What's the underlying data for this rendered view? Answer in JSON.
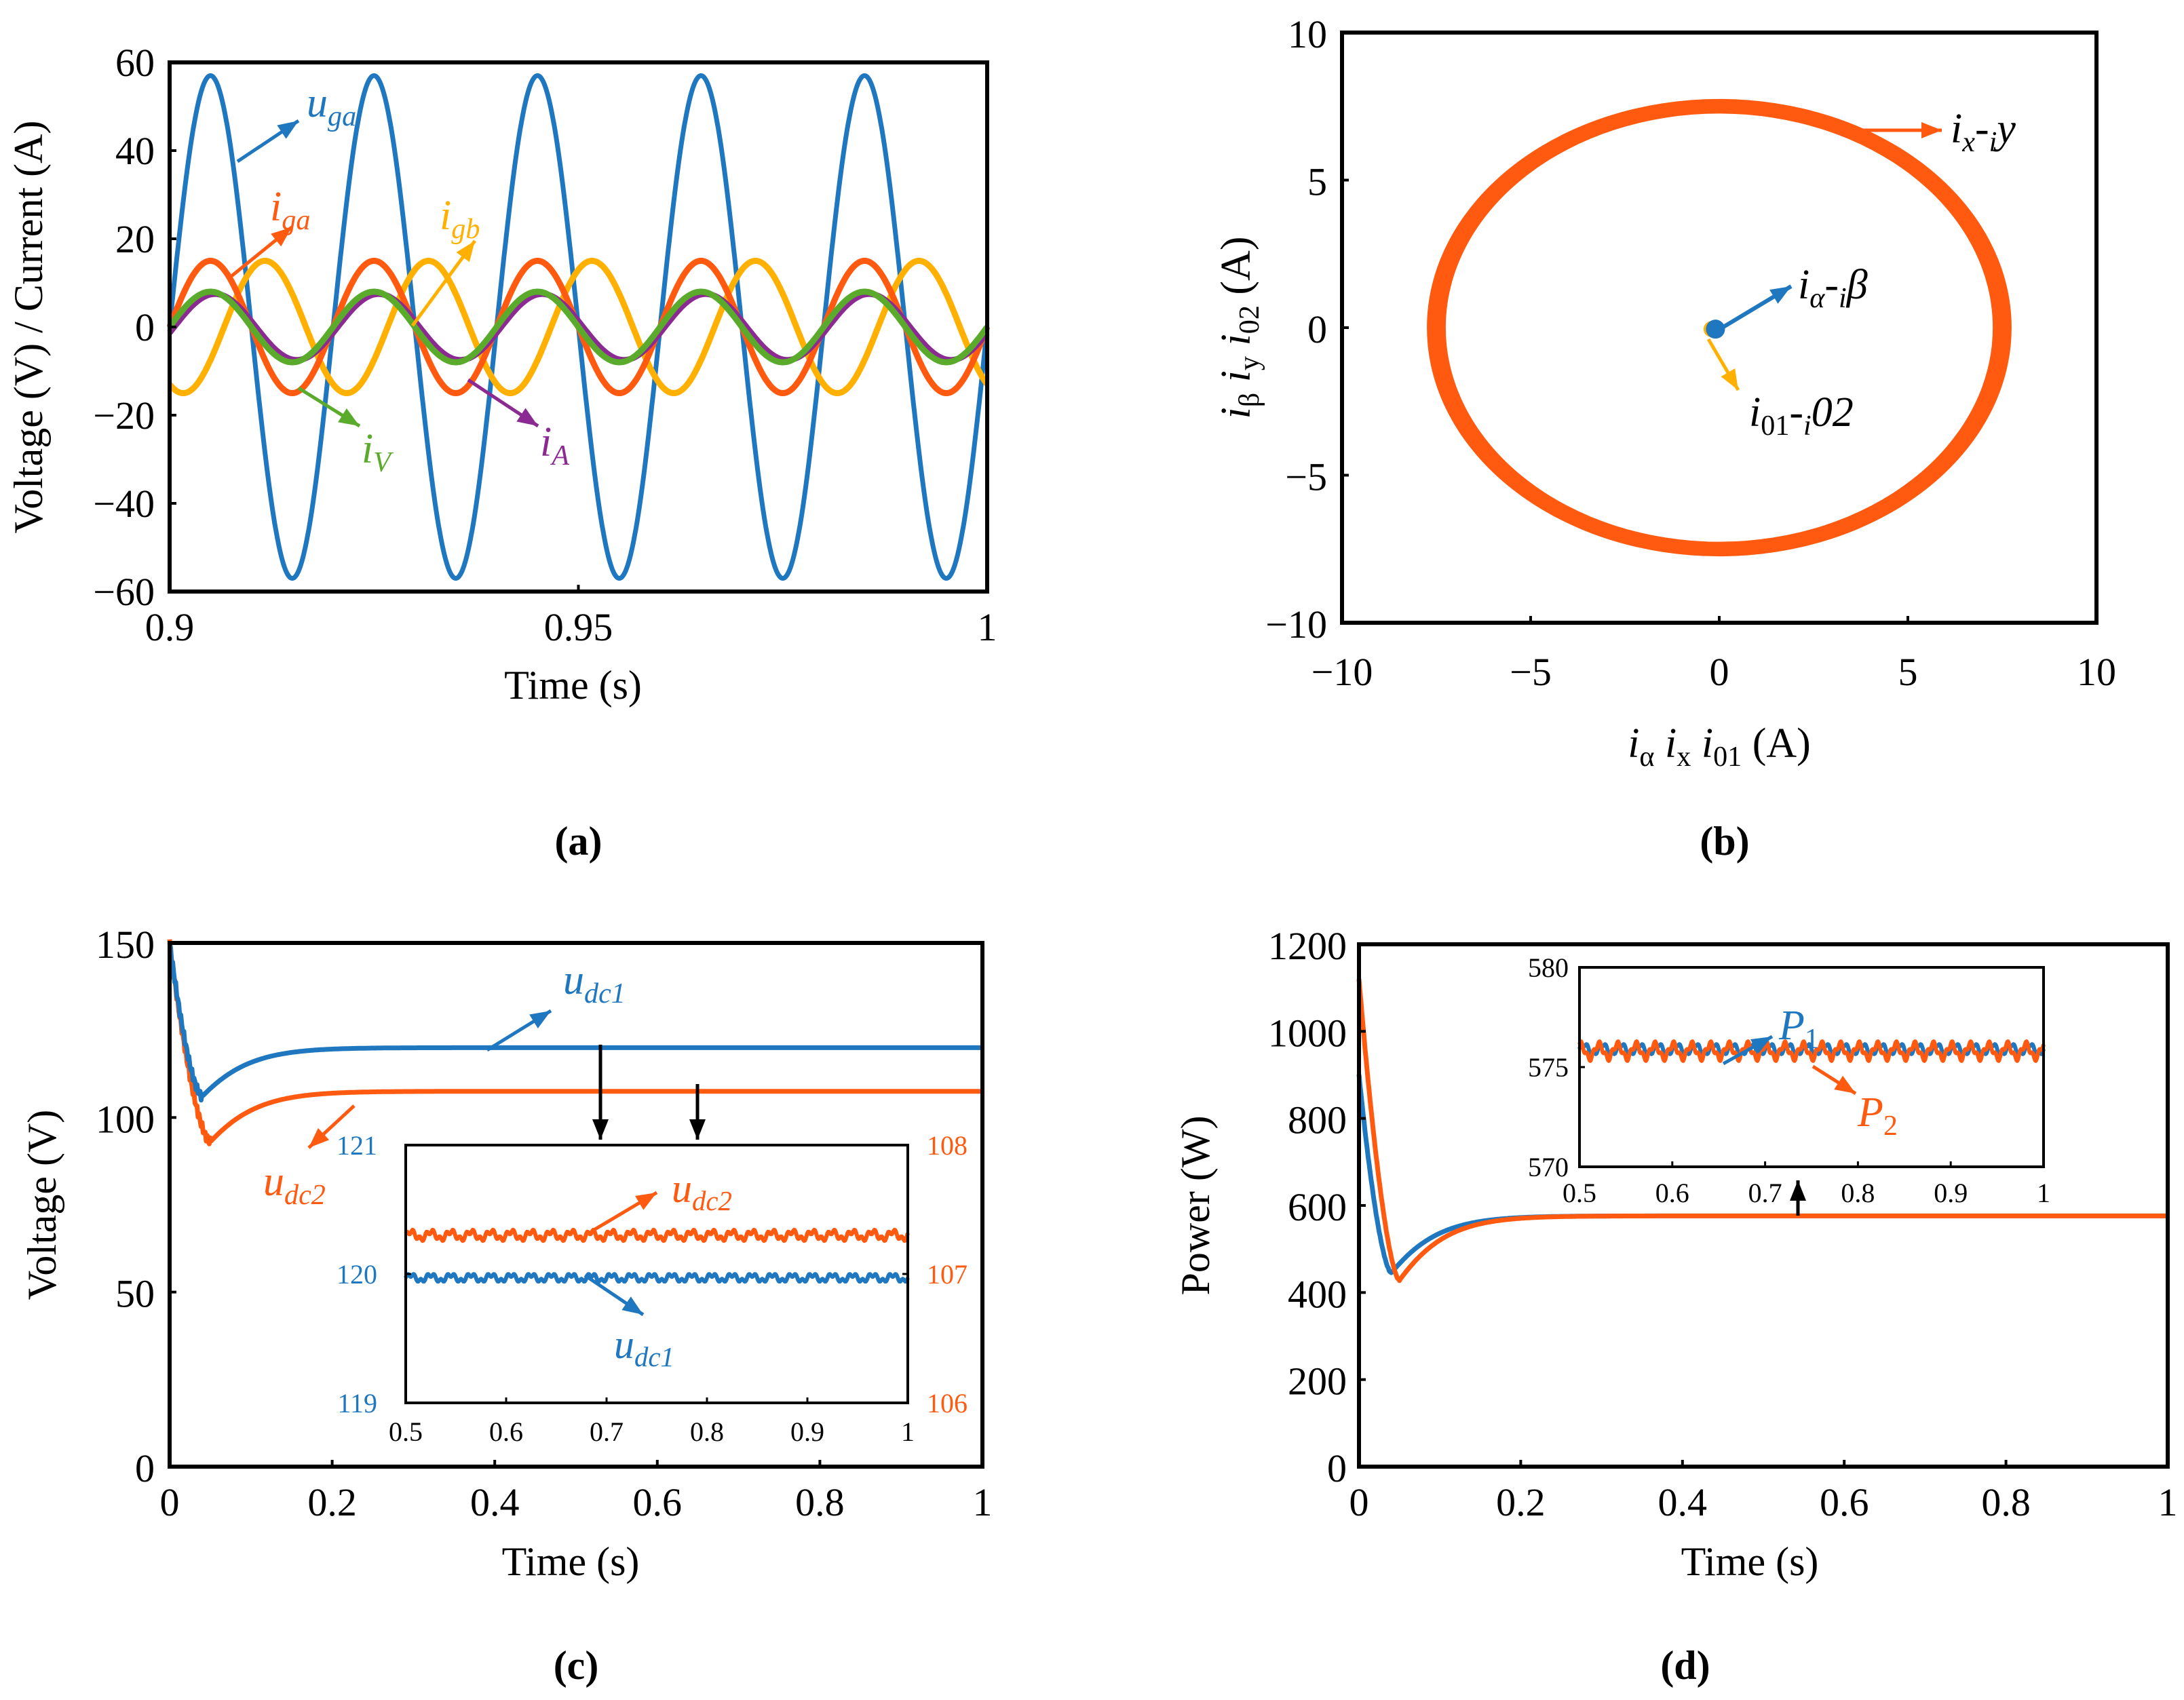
{
  "colors": {
    "blue": "#1f77c0",
    "orange": "#ff5a10",
    "yellow": "#ffb000",
    "green": "#5aab2b",
    "purple": "#8b2a93",
    "black": "#000000"
  },
  "chart_data": [
    {
      "id": "a",
      "type": "line",
      "caption": "(a)",
      "xlabel": "Time (s)",
      "ylabel": "Voltage (V) / Current (A)",
      "xlim": [
        0.9,
        1.0
      ],
      "ylim": [
        -60,
        60
      ],
      "xticks": [
        0.9,
        0.95,
        1
      ],
      "xtick_labels": [
        "0.9",
        "0.95",
        "1"
      ],
      "yticks": [
        60,
        40,
        20,
        0,
        -20,
        -40,
        -60
      ],
      "ytick_labels": [
        "60",
        "40",
        "20",
        "0",
        "−20",
        "−40",
        "−60"
      ],
      "series": [
        {
          "name": "u_ga",
          "color": "blue",
          "amplitude": 57,
          "frequency_hz": 50,
          "phase_deg": 0
        },
        {
          "name": "i_ga",
          "color": "orange",
          "amplitude": 15,
          "frequency_hz": 50,
          "phase_deg": 0
        },
        {
          "name": "i_gb",
          "color": "yellow",
          "amplitude": 15,
          "frequency_hz": 50,
          "phase_deg": -120
        },
        {
          "name": "i_V",
          "color": "green",
          "amplitude": 8,
          "frequency_hz": 50,
          "phase_deg": 0
        },
        {
          "name": "i_A",
          "color": "purple",
          "amplitude": 7.5,
          "frequency_hz": 50,
          "phase_deg": -10
        }
      ],
      "labels": [
        {
          "base": "u",
          "sub": "ga",
          "color": "blue"
        },
        {
          "base": "i",
          "sub": "ga",
          "color": "orange"
        },
        {
          "base": "i",
          "sub": "gb",
          "color": "yellow"
        },
        {
          "base": "i",
          "sub": "V",
          "color": "green"
        },
        {
          "base": "i",
          "sub": "A",
          "color": "purple"
        }
      ]
    },
    {
      "id": "b",
      "type": "scatter",
      "caption": "(b)",
      "xlabel": {
        "parts": [
          "i",
          "α",
          " i",
          "x",
          " i",
          "01",
          " (A)"
        ]
      },
      "ylabel": {
        "parts": [
          "i",
          "β",
          " i",
          "y",
          " i",
          "02",
          " (A)"
        ]
      },
      "xlim": [
        -10,
        10
      ],
      "ylim": [
        -10,
        10
      ],
      "xticks": [
        -10,
        -5,
        0,
        5,
        10
      ],
      "xtick_labels": [
        "−10",
        "−5",
        "0",
        "5",
        "10"
      ],
      "yticks": [
        10,
        5,
        0,
        -5,
        -10
      ],
      "ytick_labels": [
        "10",
        "5",
        "0",
        "−5",
        "−10"
      ],
      "series": [
        {
          "name": "i_x-i_y",
          "color": "orange",
          "shape": "circle",
          "radius": 7.5,
          "thickness": 0.5
        },
        {
          "name": "i_alpha-i_beta",
          "color": "blue",
          "shape": "dot",
          "center": [
            -0.1,
            -0.05
          ]
        },
        {
          "name": "i_01-i_02",
          "color": "yellow",
          "shape": "dot",
          "center": [
            -0.2,
            -0.05
          ]
        }
      ],
      "labels": [
        {
          "parts": [
            "i",
            "x",
            "-",
            "i",
            "y"
          ],
          "color": "orange"
        },
        {
          "parts": [
            "i",
            "α",
            "-",
            "i",
            "β"
          ],
          "color": "blue"
        },
        {
          "parts": [
            "i",
            "01",
            "-",
            "i",
            "02"
          ],
          "color": "yellow"
        }
      ]
    },
    {
      "id": "c",
      "type": "line",
      "caption": "(c)",
      "xlabel": "Time (s)",
      "ylabel": "Voltage (V)",
      "xlim": [
        0,
        1
      ],
      "ylim": [
        0,
        150
      ],
      "xticks": [
        0,
        0.2,
        0.4,
        0.6,
        0.8,
        1
      ],
      "xtick_labels": [
        "0",
        "0.2",
        "0.4",
        "0.6",
        "0.8",
        "1"
      ],
      "yticks": [
        150,
        100,
        50,
        0
      ],
      "ytick_labels": [
        "150",
        "100",
        "50",
        "0"
      ],
      "series": [
        {
          "name": "u_dc1",
          "color": "blue",
          "start": 150,
          "min": 106,
          "t_min": 0.04,
          "final": 120
        },
        {
          "name": "u_dc2",
          "color": "orange",
          "start": 150,
          "min": 93,
          "t_min": 0.05,
          "final": 107.5
        }
      ],
      "labels": [
        {
          "base": "u",
          "sub": "dc1",
          "color": "blue"
        },
        {
          "base": "u",
          "sub": "dc2",
          "color": "orange"
        }
      ],
      "inset": {
        "xlim": [
          0.5,
          1
        ],
        "xticks": [
          0.5,
          0.6,
          0.7,
          0.8,
          0.9,
          1
        ],
        "xtick_labels": [
          "0.5",
          "0.6",
          "0.7",
          "0.8",
          "0.9",
          "1"
        ],
        "left_ylim": [
          119,
          121
        ],
        "left_yticks": [
          121,
          120,
          119
        ],
        "left_ytick_labels": [
          "121",
          "120",
          "119"
        ],
        "right_ylim": [
          106,
          108
        ],
        "right_yticks": [
          108,
          107,
          106
        ],
        "right_ytick_labels": [
          "108",
          "107",
          "106"
        ],
        "series": [
          {
            "name": "u_dc1",
            "axis": "left",
            "mean": 119.97,
            "ripple": 0.04
          },
          {
            "name": "u_dc2",
            "axis": "right",
            "mean": 107.3,
            "ripple": 0.05
          }
        ]
      }
    },
    {
      "id": "d",
      "type": "line",
      "caption": "(d)",
      "xlabel": "Time (s)",
      "ylabel": "Power (W)",
      "xlim": [
        0,
        1
      ],
      "ylim": [
        0,
        1200
      ],
      "xticks": [
        0,
        0.2,
        0.4,
        0.6,
        0.8,
        1
      ],
      "xtick_labels": [
        "0",
        "0.2",
        "0.4",
        "0.6",
        "0.8",
        "1"
      ],
      "yticks": [
        1200,
        1000,
        800,
        600,
        400,
        200,
        0
      ],
      "ytick_labels": [
        "1200",
        "1000",
        "800",
        "600",
        "400",
        "200",
        "0"
      ],
      "series": [
        {
          "name": "P_1",
          "color": "blue",
          "start": 900,
          "min": 445,
          "t_min": 0.04,
          "final": 576
        },
        {
          "name": "P_2",
          "color": "orange",
          "start": 1120,
          "min": 428,
          "t_min": 0.05,
          "final": 576
        }
      ],
      "labels": [
        {
          "base": "P",
          "sub": "1",
          "color": "blue"
        },
        {
          "base": "P",
          "sub": "2",
          "color": "orange"
        }
      ],
      "inset": {
        "xlim": [
          0.5,
          1
        ],
        "ylim": [
          570,
          580
        ],
        "xticks": [
          0.5,
          0.6,
          0.7,
          0.8,
          0.9,
          1
        ],
        "xtick_labels": [
          "0.5",
          "0.6",
          "0.7",
          "0.8",
          "0.9",
          "1"
        ],
        "yticks": [
          580,
          575,
          570
        ],
        "ytick_labels": [
          "580",
          "575",
          "570"
        ],
        "series": [
          {
            "name": "P_1",
            "mean": 575.9,
            "ripple": 0.35
          },
          {
            "name": "P_2",
            "mean": 575.8,
            "ripple": 0.5
          }
        ]
      }
    }
  ]
}
